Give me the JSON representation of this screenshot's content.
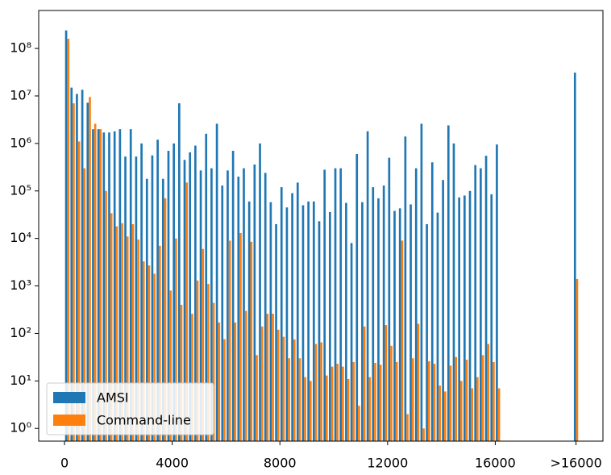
{
  "chart_data": {
    "type": "bar",
    "x": [
      0,
      200,
      400,
      600,
      800,
      1000,
      1200,
      1400,
      1600,
      1800,
      2000,
      2200,
      2400,
      2600,
      2800,
      3000,
      3200,
      3400,
      3600,
      3800,
      4000,
      4200,
      4400,
      4600,
      4800,
      5000,
      5200,
      5400,
      5600,
      5800,
      6000,
      6200,
      6400,
      6600,
      6800,
      7000,
      7200,
      7400,
      7600,
      7800,
      8000,
      8200,
      8400,
      8600,
      8800,
      9000,
      9200,
      9400,
      9600,
      9800,
      10000,
      10200,
      10400,
      10600,
      10800,
      11000,
      11200,
      11400,
      11600,
      11800,
      12000,
      12200,
      12400,
      12600,
      12800,
      13000,
      13200,
      13400,
      13600,
      13800,
      14000,
      14200,
      14400,
      14600,
      14800,
      15000,
      15200,
      15400,
      15600,
      15800,
      16000,
      18900
    ],
    "series": [
      {
        "name": "AMSI",
        "color": "#1f77b4",
        "values": [
          240000000,
          15000000,
          11000000,
          13500000,
          7200000,
          2000000,
          2000000,
          1700000,
          1700000,
          1800000,
          2000000,
          530000,
          2000000,
          530000,
          1000000,
          180000,
          560000,
          1200000,
          180000,
          700000,
          1000000,
          7000000,
          450000,
          650000,
          900000,
          270000,
          1600000,
          300000,
          2600000,
          130000,
          270000,
          700000,
          200000,
          300000,
          60000,
          360000,
          1000000,
          240000,
          58000,
          20000,
          120000,
          45000,
          90000,
          150000,
          50000,
          60000,
          60000,
          23000,
          280000,
          36000,
          300000,
          300000,
          56000,
          8000,
          600000,
          58000,
          1800000,
          120000,
          70000,
          130000,
          500000,
          38000,
          43000,
          1400000,
          52000,
          300000,
          2600000,
          20000,
          400000,
          35000,
          170000,
          2400000,
          1000000,
          73000,
          80000,
          100000,
          350000,
          300000,
          550000,
          85000,
          950000,
          31000000
        ]
      },
      {
        "name": "Command-line",
        "color": "#ff7f0e",
        "values": [
          160000000,
          7000000,
          1100000,
          300000,
          9500000,
          2600000,
          2000000,
          100000,
          34000,
          18000,
          21000,
          11000,
          20000,
          9500,
          3300,
          2700,
          1800,
          7000,
          70000,
          800,
          10000,
          400,
          150000,
          260,
          1300,
          6000,
          1100,
          440,
          170,
          76,
          9000,
          170,
          13000,
          300,
          8500,
          35,
          140,
          260,
          260,
          120,
          85,
          30,
          75,
          30,
          12,
          10,
          60,
          65,
          13,
          20,
          23,
          20,
          11,
          25,
          3,
          140,
          12,
          24,
          22,
          150,
          55,
          25,
          9000,
          2,
          30,
          160,
          1,
          26,
          23,
          8,
          6,
          21,
          32,
          10,
          28,
          7,
          12,
          35,
          60,
          25,
          7,
          1400
        ]
      }
    ],
    "xlim": [
      -960,
      20000
    ],
    "xticks": [
      0,
      4000,
      8000,
      12000,
      16000,
      {
        "value": 19000,
        "label": ">16000"
      }
    ],
    "ylim": [
      0.54,
      630000000
    ],
    "yscale": "log",
    "yticks": [
      {
        "value": 1,
        "label": "10⁰"
      },
      {
        "value": 10,
        "label": "10¹"
      },
      {
        "value": 100,
        "label": "10²"
      },
      {
        "value": 1000,
        "label": "10³"
      },
      {
        "value": 10000,
        "label": "10⁴"
      },
      {
        "value": 100000,
        "label": "10⁵"
      },
      {
        "value": 1000000,
        "label": "10⁶"
      },
      {
        "value": 10000000,
        "label": "10⁷"
      },
      {
        "value": 100000000,
        "label": "10⁸"
      }
    ],
    "grid": false,
    "legend": "lower left"
  }
}
